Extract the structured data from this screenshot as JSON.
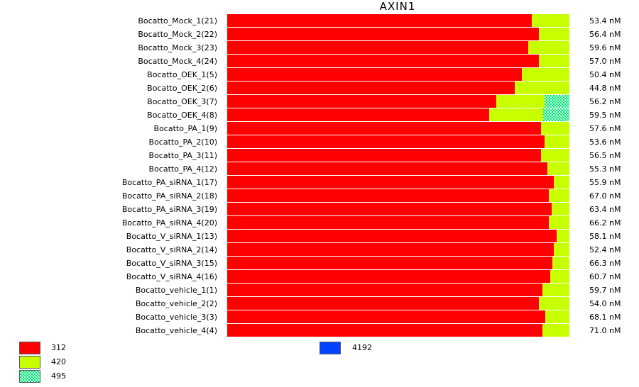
{
  "chart_data": {
    "type": "bar",
    "orientation": "horizontal",
    "stacked": true,
    "normalized": true,
    "title": "AXIN1",
    "categories": [
      "Bocatto_Mock_1(21)",
      "Bocatto_Mock_2(22)",
      "Bocatto_Mock_3(23)",
      "Bocatto_Mock_4(24)",
      "Bocatto_OEK_1(5)",
      "Bocatto_OEK_2(6)",
      "Bocatto_OEK_3(7)",
      "Bocatto_OEK_4(8)",
      "Bocatto_PA_1(9)",
      "Bocatto_PA_2(10)",
      "Bocatto_PA_3(11)",
      "Bocatto_PA_4(12)",
      "Bocatto_PA_siRNA_1(17)",
      "Bocatto_PA_siRNA_2(18)",
      "Bocatto_PA_siRNA_3(19)",
      "Bocatto_PA_siRNA_4(20)",
      "Bocatto_V_siRNA_1(13)",
      "Bocatto_V_siRNA_2(14)",
      "Bocatto_V_siRNA_3(15)",
      "Bocatto_V_siRNA_4(16)",
      "Bocatto_vehicle_1(1)",
      "Bocatto_vehicle_2(2)",
      "Bocatto_vehicle_3(3)",
      "Bocatto_vehicle_4(4)"
    ],
    "row_values": [
      "53.4 nM",
      "56.4 nM",
      "59.6 nM",
      "57.0 nM",
      "50.4 nM",
      "44.8 nM",
      "56.2 nM",
      "59.5 nM",
      "57.6 nM",
      "53.6 nM",
      "56.5 nM",
      "55.3 nM",
      "55.9 nM",
      "67.0 nM",
      "63.4 nM",
      "66.2 nM",
      "58.1 nM",
      "52.4 nM",
      "66.3 nM",
      "60.7 nM",
      "59.7 nM",
      "54.0 nM",
      "68.1 nM",
      "71.0 nM"
    ],
    "series": [
      {
        "name": "312",
        "color": "#ff0000",
        "pattern": "solid",
        "values": [
          0.89,
          0.91,
          0.88,
          0.91,
          0.86,
          0.84,
          0.787,
          0.765,
          0.918,
          0.927,
          0.917,
          0.935,
          0.954,
          0.939,
          0.949,
          0.939,
          0.962,
          0.954,
          0.951,
          0.943,
          0.922,
          0.91,
          0.929,
          0.922
        ]
      },
      {
        "name": "420",
        "color": "#c8ff00",
        "pattern": "solid",
        "values": [
          0.11,
          0.09,
          0.12,
          0.09,
          0.14,
          0.16,
          0.14,
          0.158,
          0.082,
          0.073,
          0.083,
          0.065,
          0.046,
          0.061,
          0.051,
          0.061,
          0.038,
          0.046,
          0.049,
          0.057,
          0.078,
          0.09,
          0.071,
          0.078
        ]
      },
      {
        "name": "495",
        "color": "#00e676",
        "pattern": "checker",
        "values": [
          0,
          0,
          0,
          0,
          0,
          0,
          0.073,
          0.077,
          0,
          0,
          0,
          0,
          0,
          0,
          0,
          0,
          0,
          0,
          0,
          0,
          0,
          0,
          0,
          0
        ]
      },
      {
        "name": "4192",
        "color": "#0044ff",
        "pattern": "solid",
        "values": [
          0,
          0,
          0,
          0,
          0,
          0,
          0,
          0,
          0,
          0,
          0,
          0,
          0,
          0,
          0,
          0,
          0,
          0,
          0,
          0,
          0,
          0,
          0,
          0
        ]
      }
    ],
    "xlim": [
      0,
      1
    ],
    "grid": false,
    "legend_position": "bottom"
  }
}
